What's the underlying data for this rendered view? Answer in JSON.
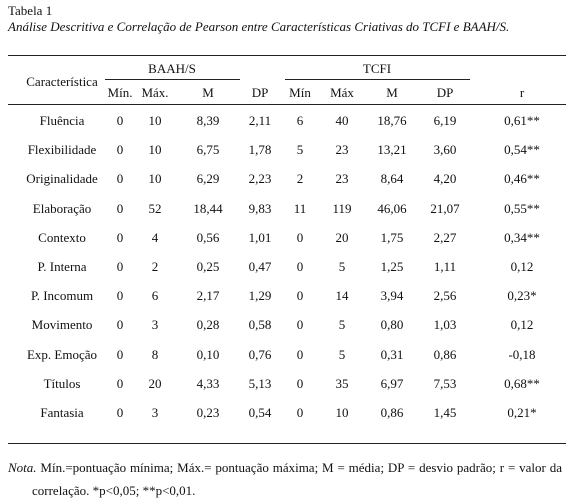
{
  "caption": {
    "label": "Tabela 1",
    "title": "Análise Descritiva e Correlação de Pearson entre Características Criativas do TCFI e BAAH/S."
  },
  "table": {
    "corner": "Característica",
    "groups": [
      "BAAH/S",
      "TCFI"
    ],
    "columns": [
      "Mín.",
      "Máx.",
      "M",
      "DP",
      "Mín",
      "Máx",
      "M",
      "DP",
      "r"
    ],
    "rows": [
      [
        "Fluência",
        "0",
        "10",
        "8,39",
        "2,11",
        "6",
        "40",
        "18,76",
        "6,19",
        "0,61**"
      ],
      [
        "Flexibilidade",
        "0",
        "10",
        "6,75",
        "1,78",
        "5",
        "23",
        "13,21",
        "3,60",
        "0,54**"
      ],
      [
        "Originalidade",
        "0",
        "10",
        "6,29",
        "2,23",
        "2",
        "23",
        "8,64",
        "4,20",
        "0,46**"
      ],
      [
        "Elaboração",
        "0",
        "52",
        "18,44",
        "9,83",
        "11",
        "119",
        "46,06",
        "21,07",
        "0,55**"
      ],
      [
        "Contexto",
        "0",
        "4",
        "0,56",
        "1,01",
        "0",
        "20",
        "1,75",
        "2,27",
        "0,34**"
      ],
      [
        "P. Interna",
        "0",
        "2",
        "0,25",
        "0,47",
        "0",
        "5",
        "1,25",
        "1,11",
        "0,12"
      ],
      [
        "P. Incomum",
        "0",
        "6",
        "2,17",
        "1,29",
        "0",
        "14",
        "3,94",
        "2,56",
        "0,23*"
      ],
      [
        "Movimento",
        "0",
        "3",
        "0,28",
        "0,58",
        "0",
        "5",
        "0,80",
        "1,03",
        "0,12"
      ],
      [
        "Exp.  Emoção",
        "0",
        "8",
        "0,10",
        "0,76",
        "0",
        "5",
        "0,31",
        "0,86",
        "-0,18"
      ],
      [
        "Títulos",
        "0",
        "20",
        "4,33",
        "5,13",
        "0",
        "35",
        "6,97",
        "7,53",
        "0,68**"
      ],
      [
        "Fantasia",
        "0",
        "3",
        "0,23",
        "0,54",
        "0",
        "10",
        "0,86",
        "1,45",
        "0,21*"
      ]
    ]
  },
  "note": {
    "label": "Nota.",
    "text": " Mín.=pontuação mínima; Máx.= pontuação máxima; M = média; DP = desvio padrão; r = valor da correlação. *p<0,05; **p<0,01."
  }
}
